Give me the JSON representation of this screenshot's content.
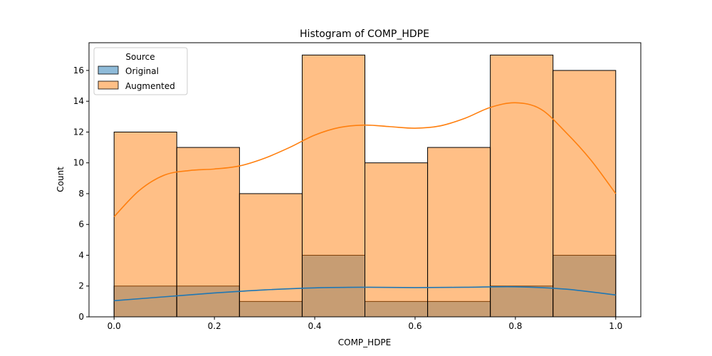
{
  "chart_data": {
    "type": "bar",
    "title": "Histogram of COMP_HDPE",
    "xlabel": "COMP_HDPE",
    "ylabel": "Count",
    "xlim": [
      -0.05,
      1.05
    ],
    "ylim": [
      0,
      17.8
    ],
    "x_ticks": [
      0.0,
      0.2,
      0.4,
      0.6,
      0.8,
      1.0
    ],
    "x_tick_labels": [
      "0.0",
      "0.2",
      "0.4",
      "0.6",
      "0.8",
      "1.0"
    ],
    "y_ticks": [
      0,
      2,
      4,
      6,
      8,
      10,
      12,
      14,
      16
    ],
    "y_tick_labels": [
      "0",
      "2",
      "4",
      "6",
      "8",
      "10",
      "12",
      "14",
      "16"
    ],
    "bin_edges": [
      0.0,
      0.125,
      0.25,
      0.375,
      0.5,
      0.625,
      0.75,
      0.875,
      1.0
    ],
    "grid": false,
    "legend": {
      "title": "Source",
      "placement": "top-left"
    },
    "series": [
      {
        "name": "Original",
        "color": "#1f77b4",
        "values": [
          2,
          2,
          1,
          4,
          1,
          1,
          2,
          4
        ],
        "kde": {
          "x": [
            0.0,
            0.1,
            0.2,
            0.3,
            0.4,
            0.5,
            0.6,
            0.7,
            0.8,
            0.9,
            1.0
          ],
          "y": [
            1.05,
            1.3,
            1.55,
            1.75,
            1.88,
            1.92,
            1.9,
            1.92,
            1.95,
            1.8,
            1.42
          ]
        }
      },
      {
        "name": "Augmented",
        "color": "#ff7f0e",
        "values": [
          12,
          11,
          8,
          17,
          10,
          11,
          17,
          16
        ],
        "kde": {
          "x": [
            0.0,
            0.05,
            0.1,
            0.15,
            0.2,
            0.25,
            0.3,
            0.35,
            0.4,
            0.45,
            0.5,
            0.55,
            0.6,
            0.65,
            0.7,
            0.75,
            0.8,
            0.85,
            0.9,
            0.95,
            1.0
          ],
          "y": [
            6.5,
            8.2,
            9.2,
            9.5,
            9.6,
            9.8,
            10.3,
            11.0,
            11.8,
            12.3,
            12.45,
            12.35,
            12.25,
            12.4,
            12.9,
            13.6,
            13.9,
            13.5,
            12.0,
            10.2,
            8.0
          ]
        }
      }
    ]
  }
}
